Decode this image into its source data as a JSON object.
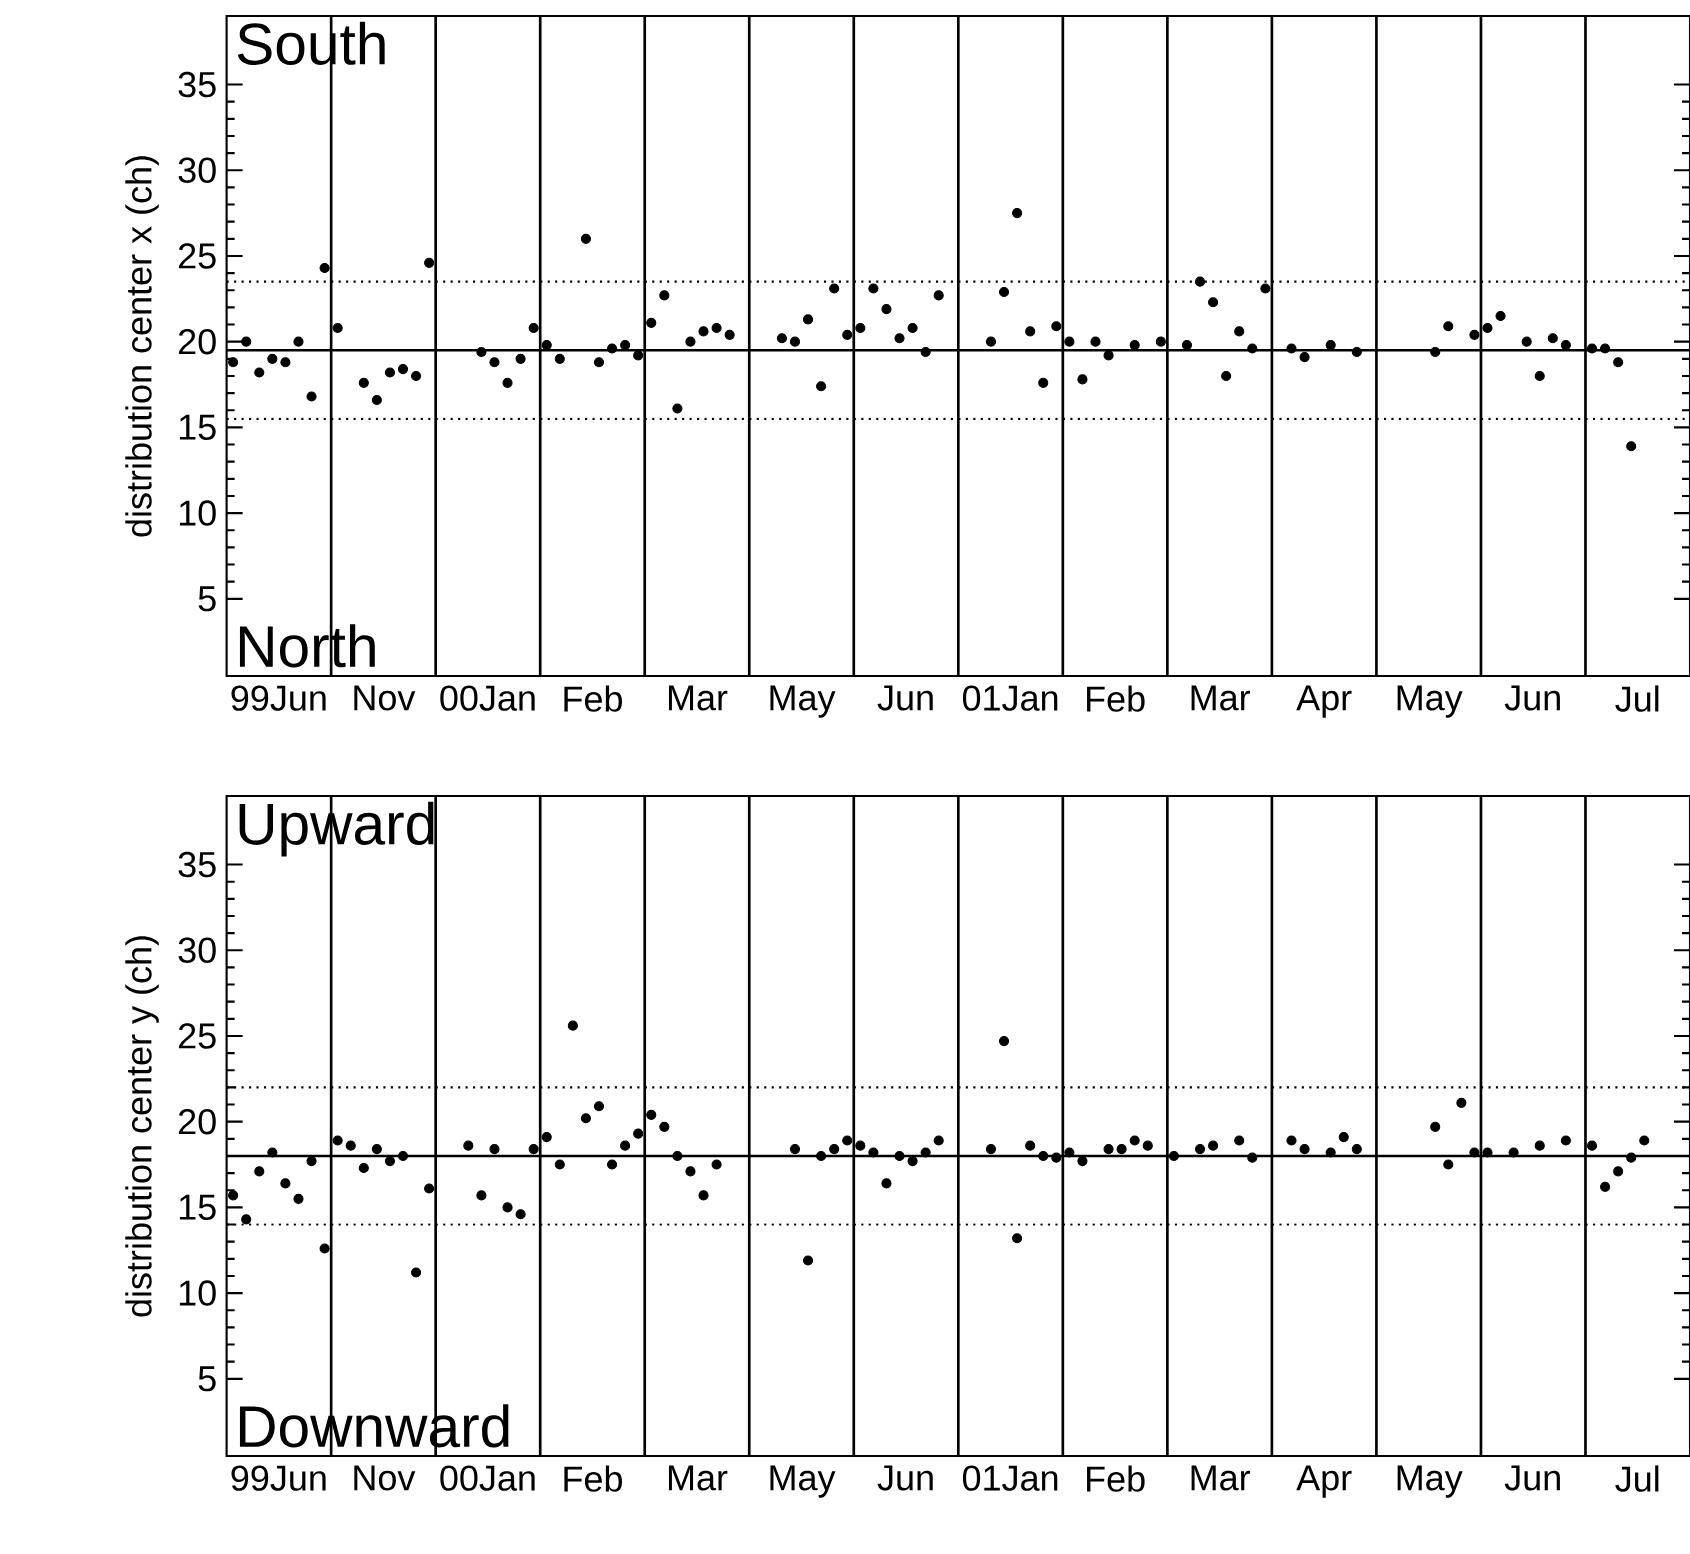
{
  "chart_data": [
    {
      "type": "scatter",
      "ylabel": "distribution center x (ch)",
      "annotations": [
        "South",
        "North"
      ],
      "categories": [
        "99Jun",
        "Nov",
        "00Jan",
        "Feb",
        "Mar",
        "May",
        "Jun",
        "01Jan",
        "Feb",
        "Mar",
        "Apr",
        "May",
        "Jun",
        "Jul"
      ],
      "ylim": [
        0.5,
        39
      ],
      "yticks": [
        5,
        10,
        15,
        20,
        25,
        30,
        35
      ],
      "ref_lines": [
        {
          "axis": "y",
          "value": 19.5,
          "line_style": "solid"
        },
        {
          "axis": "y",
          "value": 23.5,
          "line_style": "dotted"
        },
        {
          "axis": "y",
          "value": 15.5,
          "line_style": "dotted"
        }
      ],
      "series": [
        {
          "color": "#000000",
          "values": [
            18.8,
            20.8,
            null,
            19.8,
            21.1,
            null,
            20.8,
            null,
            20.0,
            null,
            null,
            null,
            20.8,
            19.6
          ]
        },
        {
          "color": "#000000",
          "values": [
            20.0,
            null,
            null,
            19.0,
            22.7,
            null,
            23.1,
            null,
            17.8,
            19.8,
            19.6,
            null,
            21.5,
            19.6
          ]
        },
        {
          "color": "#000000",
          "values": [
            18.2,
            17.6,
            null,
            null,
            16.1,
            20.2,
            21.9,
            20.0,
            20.0,
            23.5,
            19.1,
            null,
            null,
            18.8
          ]
        },
        {
          "color": "#000000",
          "values": [
            19.0,
            16.6,
            19.4,
            26.0,
            20.0,
            20.0,
            20.2,
            22.9,
            19.2,
            22.3,
            null,
            null,
            20.0,
            13.9
          ]
        },
        {
          "color": "#000000",
          "values": [
            18.8,
            18.2,
            18.8,
            18.8,
            20.6,
            21.3,
            20.8,
            27.5,
            null,
            18.0,
            19.8,
            19.4,
            18.0,
            null
          ]
        },
        {
          "color": "#000000",
          "values": [
            20.0,
            18.4,
            17.6,
            19.6,
            20.8,
            17.4,
            19.4,
            20.6,
            19.8,
            20.6,
            null,
            20.9,
            20.2,
            null
          ]
        },
        {
          "color": "#000000",
          "values": [
            16.8,
            18.0,
            19.0,
            19.8,
            20.4,
            23.1,
            22.7,
            17.6,
            null,
            19.6,
            19.4,
            null,
            19.8,
            null
          ]
        },
        {
          "color": "#000000",
          "values": [
            24.3,
            24.6,
            20.8,
            19.2,
            null,
            20.4,
            null,
            20.9,
            20.0,
            23.1,
            null,
            20.4,
            null,
            null
          ]
        }
      ]
    },
    {
      "type": "scatter",
      "ylabel": "distribution center y (ch)",
      "annotations": [
        "Upward",
        "Downward"
      ],
      "categories": [
        "99Jun",
        "Nov",
        "00Jan",
        "Feb",
        "Mar",
        "May",
        "Jun",
        "01Jan",
        "Feb",
        "Mar",
        "Apr",
        "May",
        "Jun",
        "Jul"
      ],
      "ylim": [
        0.5,
        39
      ],
      "yticks": [
        5,
        10,
        15,
        20,
        25,
        30,
        35
      ],
      "ref_lines": [
        {
          "axis": "y",
          "value": 18,
          "line_style": "solid"
        },
        {
          "axis": "y",
          "value": 22,
          "line_style": "dotted"
        },
        {
          "axis": "y",
          "value": 14,
          "line_style": "dotted"
        }
      ],
      "series": [
        {
          "color": "#000000",
          "values": [
            15.7,
            18.9,
            null,
            19.1,
            20.4,
            null,
            18.6,
            null,
            18.2,
            18.0,
            null,
            null,
            18.2,
            18.6
          ]
        },
        {
          "color": "#000000",
          "values": [
            14.3,
            18.6,
            null,
            17.5,
            19.7,
            null,
            18.2,
            null,
            17.7,
            null,
            18.9,
            null,
            null,
            16.2
          ]
        },
        {
          "color": "#000000",
          "values": [
            17.1,
            17.3,
            18.6,
            25.6,
            18.0,
            null,
            16.4,
            18.4,
            null,
            18.4,
            18.4,
            null,
            18.2,
            17.1
          ]
        },
        {
          "color": "#000000",
          "values": [
            18.2,
            18.4,
            15.7,
            20.2,
            17.1,
            18.4,
            18.0,
            24.7,
            18.4,
            18.6,
            null,
            null,
            null,
            17.9
          ]
        },
        {
          "color": "#000000",
          "values": [
            16.4,
            17.7,
            18.4,
            20.9,
            15.7,
            11.9,
            17.7,
            13.2,
            18.4,
            null,
            18.2,
            19.7,
            18.6,
            18.9
          ]
        },
        {
          "color": "#000000",
          "values": [
            15.5,
            18.0,
            15.0,
            17.5,
            17.5,
            18.0,
            18.2,
            18.6,
            18.9,
            18.9,
            19.1,
            17.5,
            null,
            null
          ]
        },
        {
          "color": "#000000",
          "values": [
            17.7,
            11.2,
            14.6,
            18.6,
            null,
            18.4,
            18.9,
            18.0,
            18.6,
            17.9,
            18.4,
            21.1,
            18.9,
            null
          ]
        },
        {
          "color": "#000000",
          "values": [
            12.6,
            16.1,
            18.4,
            19.3,
            null,
            18.9,
            null,
            17.9,
            null,
            null,
            null,
            18.2,
            null,
            null
          ]
        }
      ]
    }
  ]
}
